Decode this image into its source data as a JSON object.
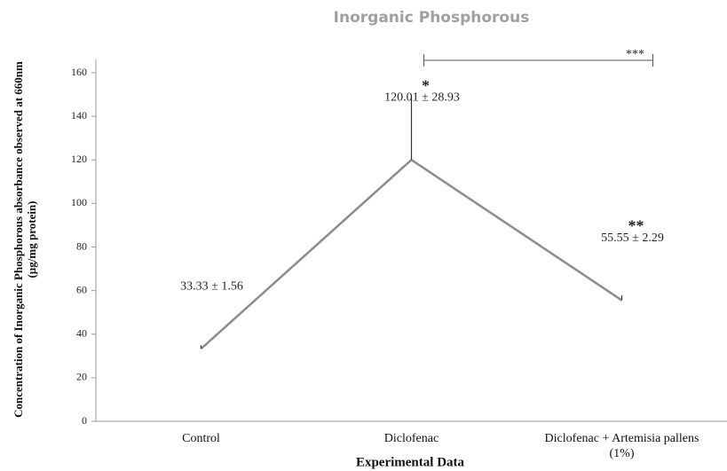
{
  "chart_data": {
    "type": "line",
    "title": "Inorganic Phosphorous",
    "xlabel": "Experimental Data",
    "ylabel": "Concentration of Inorganic Phosphorous absorbance observed at 660nm (µg/mg protein)",
    "categories": [
      "Control",
      "Diclofenac",
      "Diclofenac + Artemisia pallens (1%)"
    ],
    "values": [
      33.33,
      120.01,
      55.55
    ],
    "errors": [
      1.56,
      28.93,
      2.29
    ],
    "value_labels": [
      "33.33 ± 1.56",
      "120.01 ± 28.93",
      "55.55 ± 2.29"
    ],
    "significance": [
      "",
      "*",
      "**"
    ],
    "bracket": {
      "from": 1,
      "to": 2,
      "label": "***"
    },
    "color": "#8c8c8c",
    "ylim": [
      0,
      160
    ],
    "yticks": [
      0,
      20,
      40,
      60,
      80,
      100,
      120,
      140,
      160
    ]
  }
}
